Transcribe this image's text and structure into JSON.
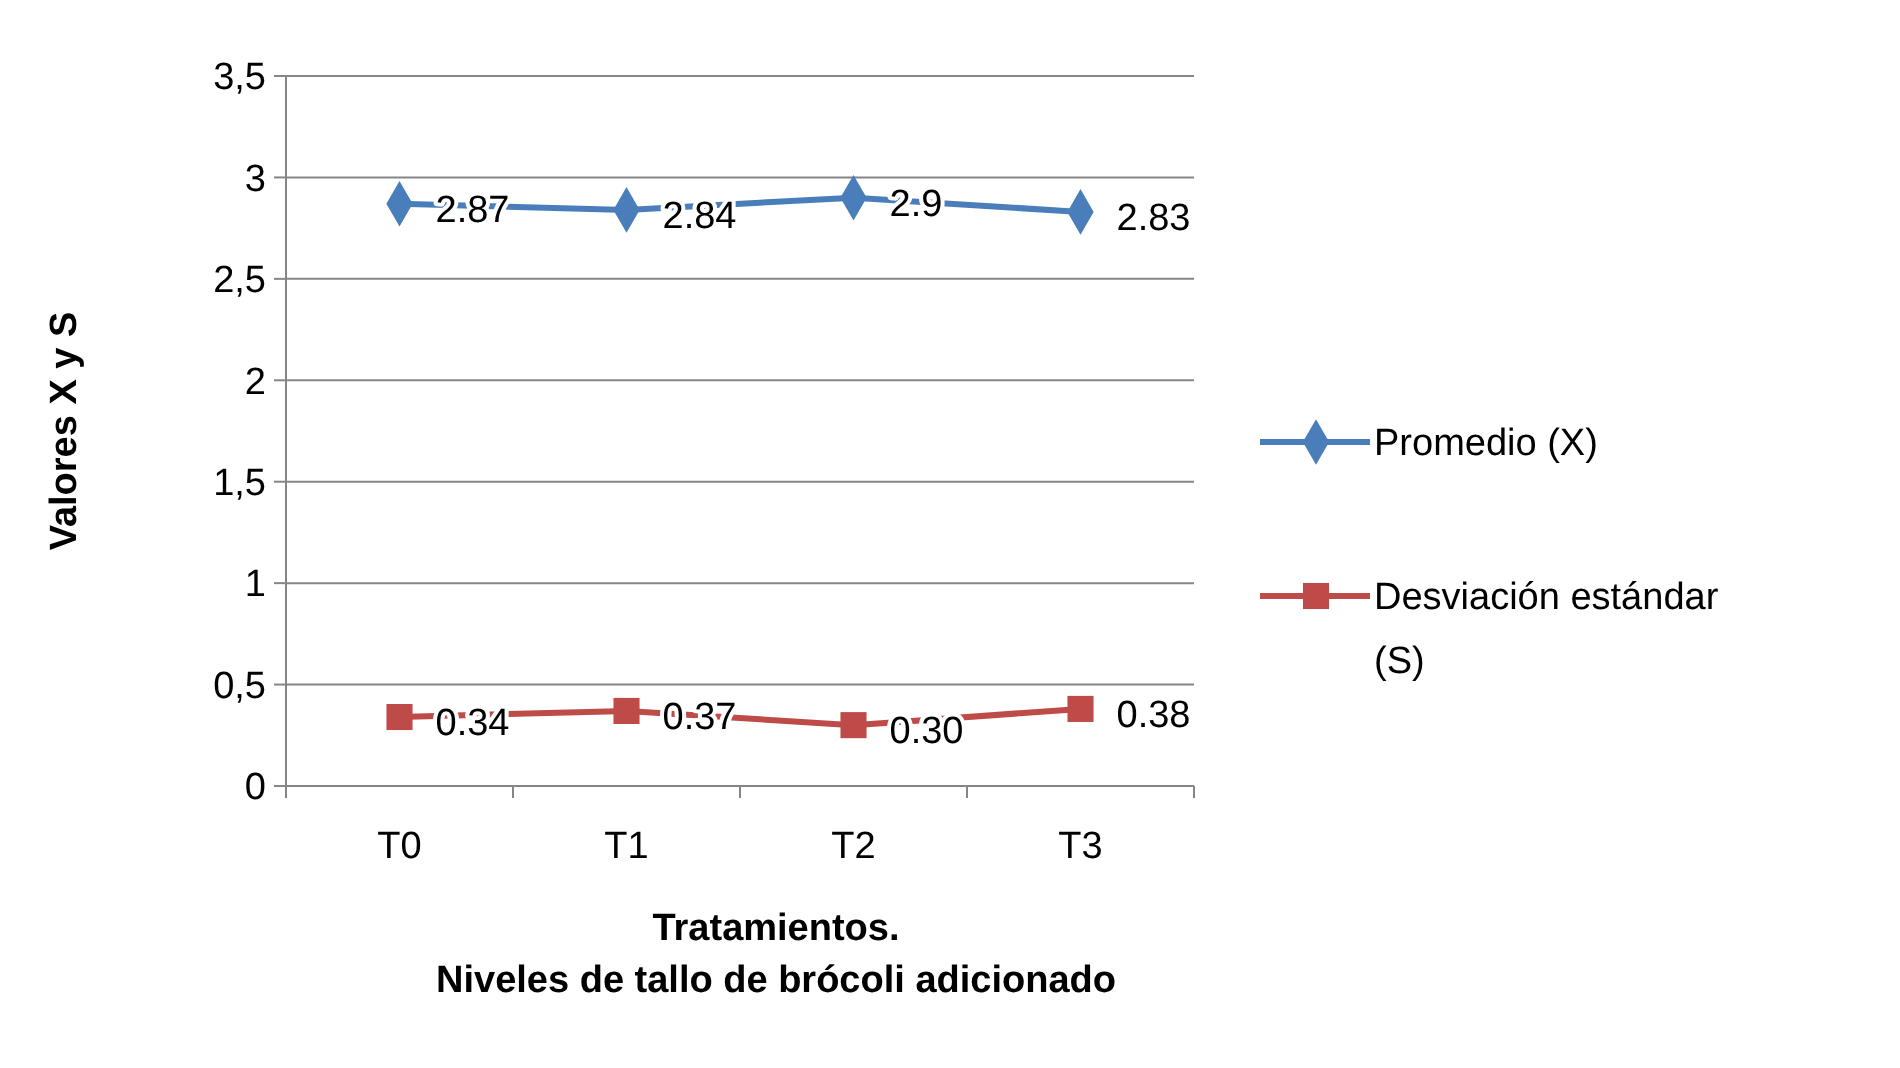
{
  "chart_data": {
    "type": "line",
    "xlabel": "Tratamientos.\nNiveles de tallo de brócoli adicionado",
    "ylabel": "Valores X y S",
    "categories": [
      "T0",
      "T1",
      "T2",
      "T3"
    ],
    "series": [
      {
        "name": "Promedio (X)",
        "color": "#4a7ebb",
        "marker": "diamond",
        "values": [
          2.87,
          2.84,
          2.9,
          2.83
        ],
        "value_labels": [
          "2.87",
          "2.84",
          "2.9",
          "2.83"
        ]
      },
      {
        "name": "Desviación estándar (S)",
        "color": "#be4b48",
        "marker": "square",
        "values": [
          0.34,
          0.37,
          0.3,
          0.38
        ],
        "value_labels": [
          "0.34",
          "0.37",
          "0.30",
          "0.38"
        ]
      }
    ],
    "ylim": [
      0,
      3.5
    ],
    "yticks": [
      0,
      {
        "value": 0.5,
        "label": "0,5"
      },
      1,
      {
        "value": 1.5,
        "label": "1,5"
      },
      2,
      {
        "value": 2.5,
        "label": "2,5"
      },
      3,
      {
        "value": 3.5,
        "label": "3,5"
      }
    ],
    "grid": "y",
    "legend": "right",
    "line_style": "solid"
  }
}
